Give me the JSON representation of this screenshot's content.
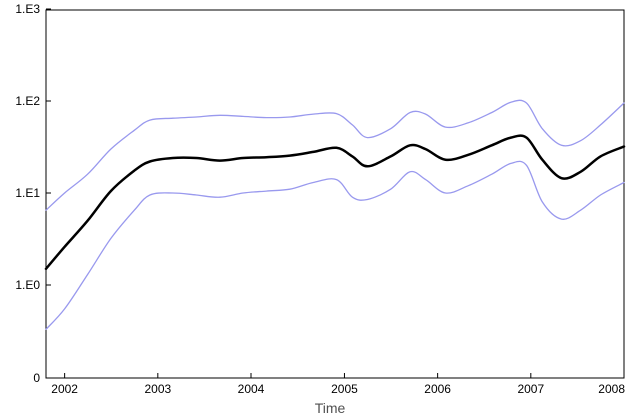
{
  "chart_data": {
    "type": "line",
    "title": "",
    "xlabel": "Time",
    "ylabel": "",
    "x_scale": "time",
    "y_scale": "log10",
    "xlim": [
      "2001-10-20",
      "2008-01-01"
    ],
    "x_ticks": [
      {
        "value": "2002-01-01",
        "label": "2002"
      },
      {
        "value": "2003-01-01",
        "label": "2003"
      },
      {
        "value": "2004-01-01",
        "label": "2004"
      },
      {
        "value": "2005-01-01",
        "label": "2005"
      },
      {
        "value": "2006-01-01",
        "label": "2006"
      },
      {
        "value": "2007-01-01",
        "label": "2007"
      },
      {
        "value": "2008-01-01",
        "label": "2008"
      }
    ],
    "y_ticks": [
      {
        "value": 1,
        "label": "1.E0"
      },
      {
        "value": 10,
        "label": "1.E1"
      },
      {
        "value": 100,
        "label": "1.E2"
      },
      {
        "value": 1000,
        "label": "1.E3"
      }
    ],
    "y_bottom_label": "0",
    "grid": false,
    "legend": "none",
    "series": [
      {
        "role": "estimate",
        "color": "#000000",
        "x": [
          "2001-10-20",
          "2002-01-01",
          "2002-04-01",
          "2002-07-01",
          "2002-10-01",
          "2002-12-01",
          "2003-03-01",
          "2003-06-01",
          "2003-09-01",
          "2003-12-01",
          "2004-03-01",
          "2004-06-01",
          "2004-09-01",
          "2004-12-01",
          "2005-02-01",
          "2005-04-01",
          "2005-07-01",
          "2005-09-15",
          "2005-11-15",
          "2006-02-01",
          "2006-05-01",
          "2006-08-01",
          "2006-10-15",
          "2006-12-15",
          "2007-02-15",
          "2007-05-01",
          "2007-07-15",
          "2007-10-01",
          "2008-01-01"
        ],
        "y": [
          1.5,
          2.6,
          5.0,
          10.5,
          17.5,
          22,
          24,
          24,
          22.5,
          24,
          24.5,
          25.5,
          28,
          31,
          25,
          19.5,
          25,
          33,
          30,
          23,
          26,
          33,
          40,
          40,
          23,
          14.5,
          17,
          25,
          32
        ]
      },
      {
        "role": "upper bound",
        "color": "#9999ee",
        "x": [
          "2001-10-20",
          "2002-01-01",
          "2002-04-01",
          "2002-07-01",
          "2002-10-01",
          "2002-12-01",
          "2003-03-01",
          "2003-06-01",
          "2003-09-01",
          "2003-12-01",
          "2004-03-01",
          "2004-06-01",
          "2004-09-01",
          "2004-12-01",
          "2005-02-01",
          "2005-04-01",
          "2005-07-01",
          "2005-09-15",
          "2005-11-15",
          "2006-02-01",
          "2006-05-01",
          "2006-08-01",
          "2006-10-15",
          "2006-12-15",
          "2007-02-15",
          "2007-05-01",
          "2007-07-15",
          "2007-10-01",
          "2008-01-01"
        ],
        "y": [
          6.5,
          10,
          16,
          30,
          48,
          62,
          65,
          67,
          70,
          68,
          66,
          67,
          72,
          73,
          55,
          40,
          50,
          75,
          72,
          52,
          58,
          75,
          97,
          95,
          50,
          33,
          37,
          55,
          95
        ]
      },
      {
        "role": "lower bound",
        "color": "#9999ee",
        "x": [
          "2001-10-20",
          "2002-01-01",
          "2002-04-01",
          "2002-07-01",
          "2002-10-01",
          "2002-12-01",
          "2003-03-01",
          "2003-06-01",
          "2003-09-01",
          "2003-12-01",
          "2004-03-01",
          "2004-06-01",
          "2004-09-01",
          "2004-12-01",
          "2005-02-01",
          "2005-04-01",
          "2005-07-01",
          "2005-09-15",
          "2005-11-15",
          "2006-02-01",
          "2006-05-01",
          "2006-08-01",
          "2006-10-15",
          "2006-12-15",
          "2007-02-15",
          "2007-05-01",
          "2007-07-15",
          "2007-10-01",
          "2008-01-01"
        ],
        "y": [
          0.33,
          0.55,
          1.3,
          3.2,
          6.5,
          9.5,
          10,
          9.5,
          9,
          10,
          10.5,
          11,
          13,
          14,
          9,
          8.5,
          11,
          17,
          14,
          10,
          12,
          16,
          21,
          20,
          8,
          5.2,
          6.5,
          9.5,
          13
        ]
      }
    ]
  }
}
